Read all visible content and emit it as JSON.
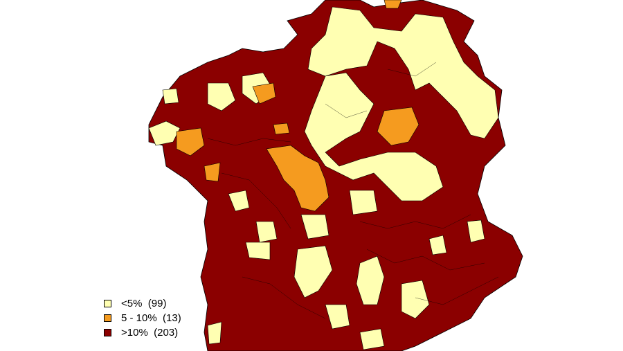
{
  "colors": {
    "low": "#ffffb2",
    "mid": "#f59b1f",
    "high": "#8b0000",
    "border": "#000000"
  },
  "legend": [
    {
      "label": "<5%  (99)",
      "color": "#ffffb2"
    },
    {
      "label": "5 - 10%  (13)",
      "color": "#f59b1f"
    },
    {
      "label": ">10%  (203)",
      "color": "#8b0000"
    }
  ]
}
